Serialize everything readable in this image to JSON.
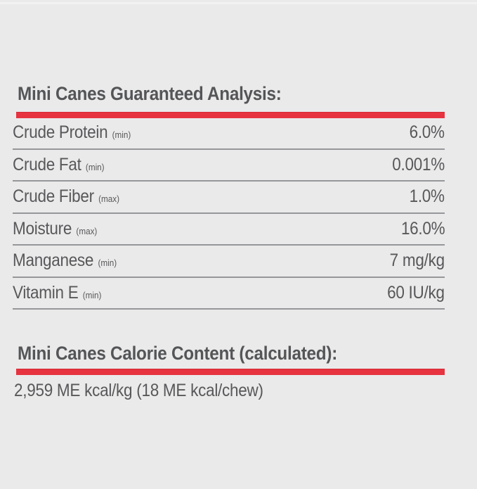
{
  "page": {
    "colors": {
      "background": "#eaeaeb",
      "accent_red": "#e73340",
      "text_gray": "#58585a",
      "divider_gray": "#96979a"
    }
  },
  "guaranteed_analysis": {
    "title": "Mini Canes Guaranteed Analysis:",
    "rows": [
      {
        "label": "Crude Protein",
        "qualifier": "(min)",
        "value": "6.0%"
      },
      {
        "label": "Crude Fat",
        "qualifier": "(min)",
        "value": "0.001%"
      },
      {
        "label": "Crude Fiber",
        "qualifier": "(max)",
        "value": "1.0%"
      },
      {
        "label": "Moisture",
        "qualifier": "(max)",
        "value": "16.0%"
      },
      {
        "label": "Manganese",
        "qualifier": "(min)",
        "value": "7 mg/kg"
      },
      {
        "label": "Vitamin E",
        "qualifier": "(min)",
        "value": "60 IU/kg"
      }
    ]
  },
  "calorie_content": {
    "title": "Mini Canes Calorie Content (calculated):",
    "value": "2,959 ME kcal/kg (18 ME kcal/chew)"
  }
}
